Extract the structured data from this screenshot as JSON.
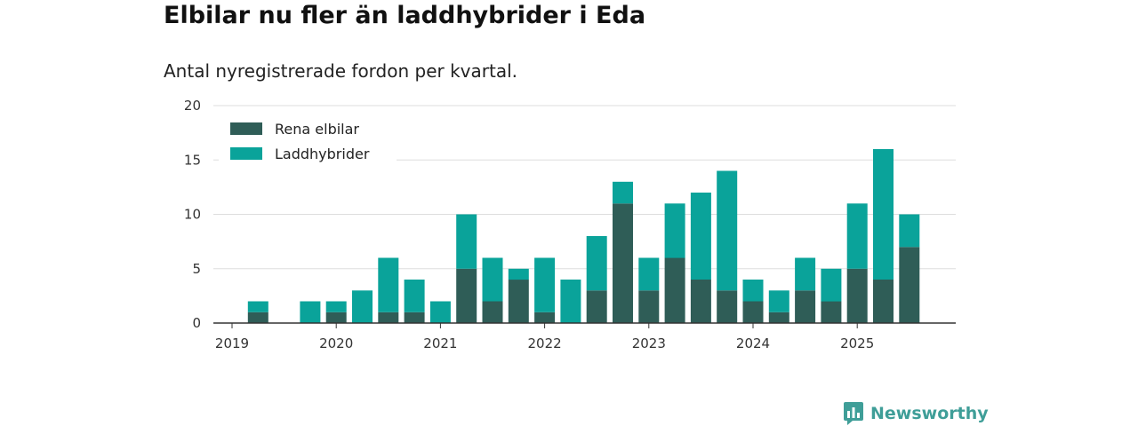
{
  "title": "Elbilar nu fler än laddhybrider i Eda",
  "subtitle": "Antal nyregistrerade fordon per kvartal.",
  "logo_text": "Newsworthy",
  "colors": {
    "electric": "#2f5d57",
    "hybrid": "#0aa39a",
    "grid": "#dddddd",
    "axis": "#333333",
    "brand": "#3f9e98"
  },
  "chart_data": {
    "type": "bar",
    "stacked": true,
    "title": "Elbilar nu fler än laddhybrider i Eda",
    "subtitle": "Antal nyregistrerade fordon per kvartal.",
    "xlabel": "",
    "ylabel": "",
    "ylim": [
      0,
      20
    ],
    "y_ticks": [
      "0",
      "5",
      "10",
      "15",
      "20"
    ],
    "x_ticks": [
      "2019",
      "2020",
      "2021",
      "2022",
      "2023",
      "2024",
      "2025"
    ],
    "categories": [
      "2019 Q1",
      "2019 Q2",
      "2019 Q3",
      "2019 Q4",
      "2020 Q1",
      "2020 Q2",
      "2020 Q3",
      "2020 Q4",
      "2021 Q1",
      "2021 Q2",
      "2021 Q3",
      "2021 Q4",
      "2022 Q1",
      "2022 Q2",
      "2022 Q3",
      "2022 Q4",
      "2023 Q1",
      "2023 Q2",
      "2023 Q3",
      "2023 Q4",
      "2024 Q1",
      "2024 Q2",
      "2024 Q3",
      "2024 Q4",
      "2025 Q1",
      "2025 Q2",
      "2025 Q3"
    ],
    "series": [
      {
        "name": "Rena elbilar",
        "values": [
          0,
          1,
          0,
          0,
          1,
          0,
          1,
          1,
          0,
          5,
          2,
          4,
          1,
          0,
          3,
          11,
          3,
          6,
          4,
          3,
          2,
          1,
          3,
          2,
          5,
          4,
          7
        ]
      },
      {
        "name": "Laddhybrider",
        "values": [
          0,
          1,
          0,
          2,
          1,
          3,
          5,
          3,
          2,
          5,
          4,
          1,
          5,
          4,
          5,
          2,
          3,
          5,
          8,
          11,
          2,
          2,
          3,
          3,
          6,
          12,
          3
        ]
      }
    ],
    "legend": {
      "position": "top-left",
      "entries": [
        "Rena elbilar",
        "Laddhybrider"
      ]
    },
    "grid": true
  }
}
